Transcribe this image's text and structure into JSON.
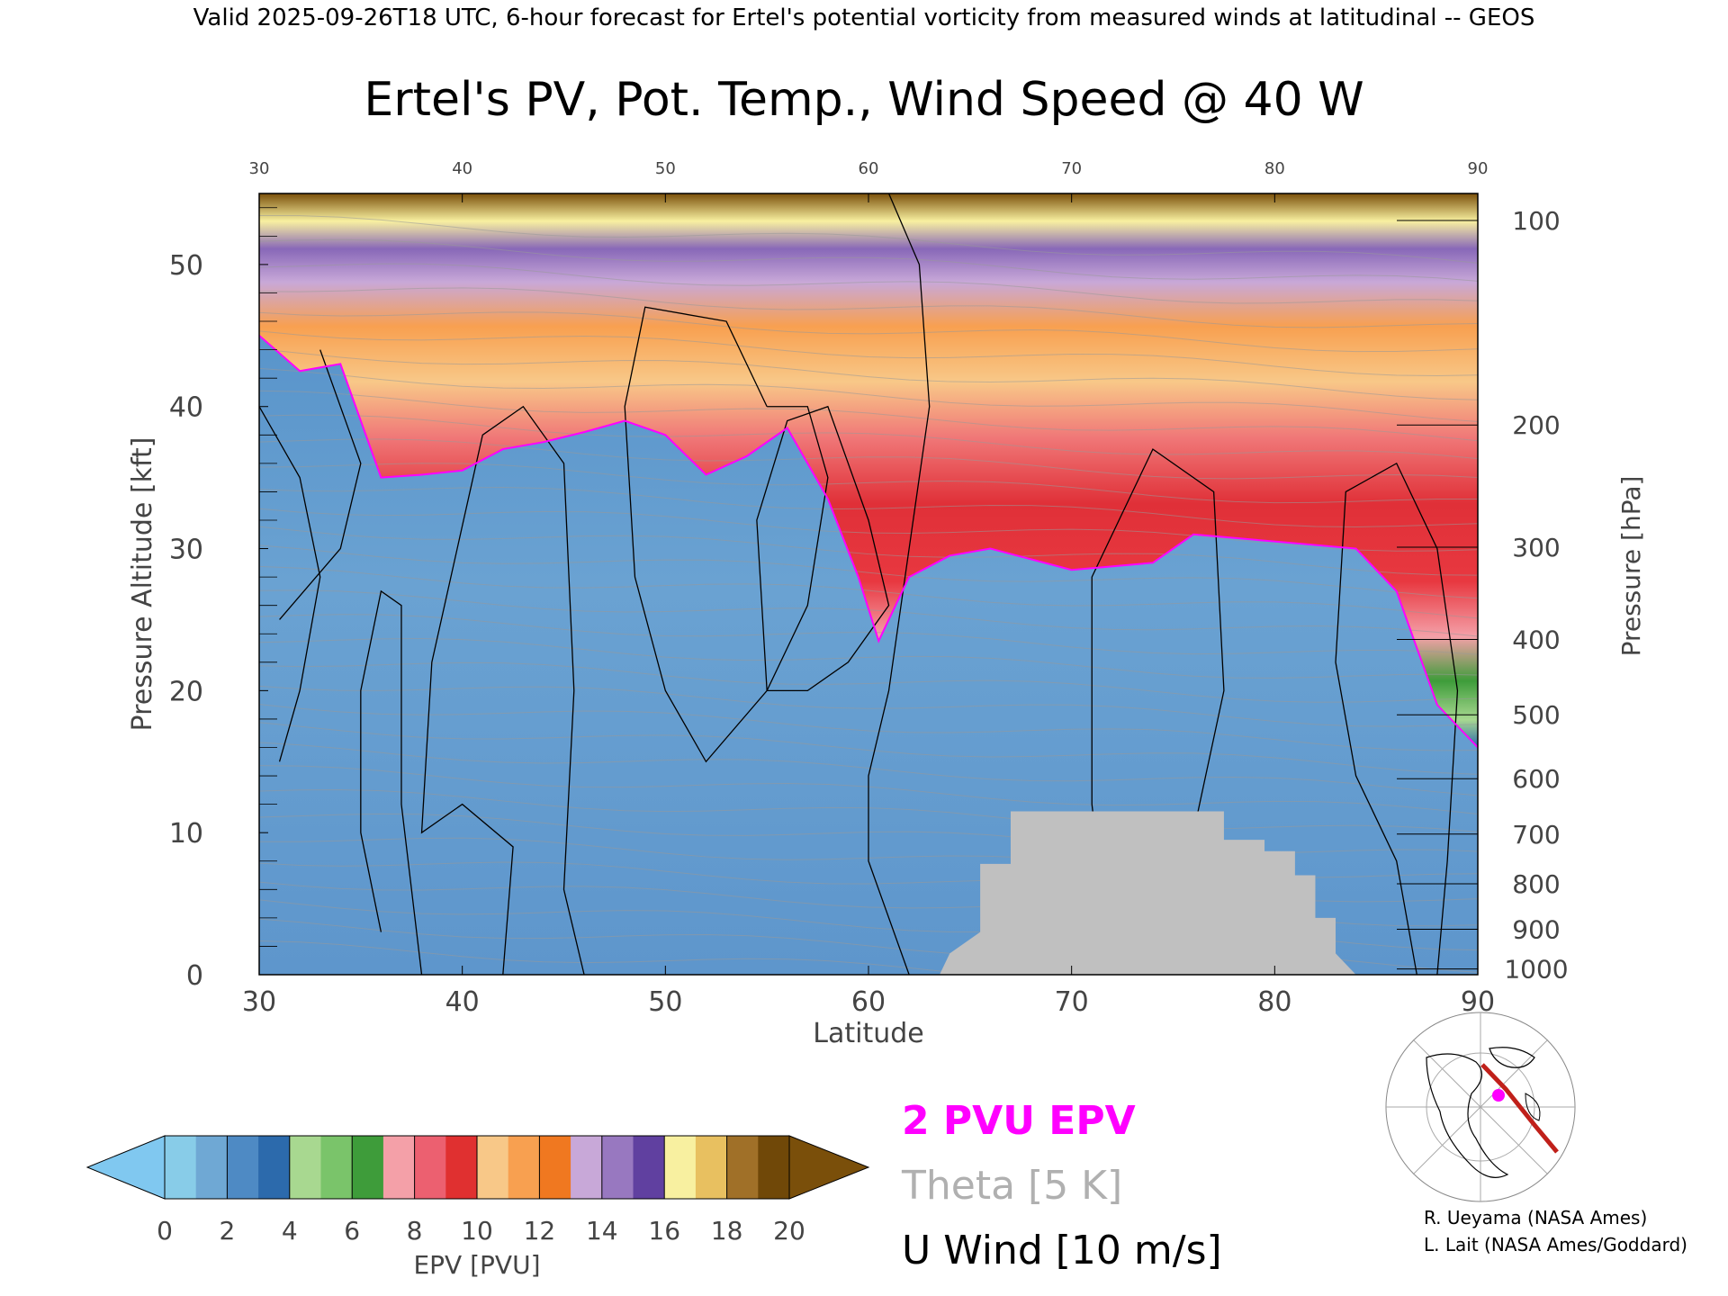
{
  "header": "Valid 2025-09-26T18 UTC, 6-hour forecast for Ertel's potential vorticity from measured winds at latitudinal -- GEOS",
  "chart_data": {
    "type": "heatmap",
    "title": "Ertel's PV, Pot. Temp., Wind Speed @ 40 W",
    "xlabel": "Latitude",
    "ylabel": "Pressure Altitude [kft]",
    "ylabel_right": "Pressure [hPa]",
    "xlim": [
      30,
      90
    ],
    "ylim": [
      0,
      55
    ],
    "x_ticks": [
      30,
      40,
      50,
      60,
      70,
      80,
      90
    ],
    "y_ticks": [
      0,
      10,
      20,
      30,
      40,
      50
    ],
    "pressure_ticks": [
      {
        "hpa": "100",
        "kft": 53.1
      },
      {
        "hpa": "200",
        "kft": 38.7
      },
      {
        "hpa": "300",
        "kft": 30.1
      },
      {
        "hpa": "400",
        "kft": 23.6
      },
      {
        "hpa": "500",
        "kft": 18.3
      },
      {
        "hpa": "600",
        "kft": 13.8
      },
      {
        "hpa": "700",
        "kft": 9.9
      },
      {
        "hpa": "800",
        "kft": 6.4
      },
      {
        "hpa": "900",
        "kft": 3.2
      },
      {
        "hpa": "1000",
        "kft": 0.4
      }
    ],
    "tropopause_2pvu_kft": [
      [
        30,
        45.0
      ],
      [
        32,
        42.5
      ],
      [
        34,
        43.0
      ],
      [
        36,
        35.0
      ],
      [
        38,
        35.2
      ],
      [
        40,
        35.5
      ],
      [
        42,
        37.0
      ],
      [
        44,
        37.5
      ],
      [
        46,
        38.2
      ],
      [
        48,
        39.0
      ],
      [
        50,
        38.0
      ],
      [
        52,
        35.2
      ],
      [
        54,
        36.5
      ],
      [
        56,
        38.5
      ],
      [
        58,
        33.5
      ],
      [
        59.5,
        28.0
      ],
      [
        60.5,
        23.5
      ],
      [
        62,
        28.0
      ],
      [
        64,
        29.5
      ],
      [
        66,
        30.0
      ],
      [
        70,
        28.5
      ],
      [
        74,
        29.0
      ],
      [
        76,
        31.0
      ],
      [
        80,
        30.5
      ],
      [
        84,
        30.0
      ],
      [
        86,
        27.0
      ],
      [
        88,
        19.0
      ],
      [
        90,
        16.0
      ]
    ],
    "terrain_kft": [
      [
        63.5,
        0
      ],
      [
        64,
        1.5
      ],
      [
        65.5,
        3
      ],
      [
        65.5,
        7.8
      ],
      [
        67,
        7.8
      ],
      [
        67,
        11.5
      ],
      [
        77.5,
        11.5
      ],
      [
        77.5,
        9.5
      ],
      [
        79.5,
        9.5
      ],
      [
        79.5,
        8.7
      ],
      [
        81,
        8.7
      ],
      [
        81,
        7
      ],
      [
        82,
        7
      ],
      [
        82,
        4
      ],
      [
        83,
        4
      ],
      [
        83,
        1.5
      ],
      [
        84,
        0
      ]
    ],
    "colorbar": {
      "label": "EPV [PVU]",
      "ticks": [
        "0",
        "2",
        "4",
        "6",
        "8",
        "10",
        "12",
        "14",
        "16",
        "18",
        "20"
      ],
      "colors": [
        "#88cce8",
        "#6fa8d4",
        "#4e8ac4",
        "#2c6aac",
        "#a8d890",
        "#7ac46a",
        "#3e9c3a",
        "#f4a0a8",
        "#ec6070",
        "#e03030",
        "#f8c888",
        "#f8a050",
        "#f07820",
        "#c8a8d8",
        "#9878c0",
        "#6040a0",
        "#f8f0a0",
        "#e8c060",
        "#a07028",
        "#704808"
      ],
      "under_color": "#80c8f0",
      "over_color": "#7a4f0a"
    },
    "legend": [
      {
        "label": "2 PVU EPV",
        "color": "#ff00ff"
      },
      {
        "label": "Theta [5 K]",
        "color": "#b0b0b0"
      },
      {
        "label": "U Wind [10 m/s]",
        "color": "#000000"
      }
    ]
  },
  "credits": [
    "R. Ueyama (NASA Ames)",
    "L. Lait (NASA Ames/Goddard)"
  ],
  "colors": {
    "terrain": "#c0c0c0",
    "tropopause": "#ff00ff",
    "wind": "#000000",
    "theta": "#999999"
  }
}
